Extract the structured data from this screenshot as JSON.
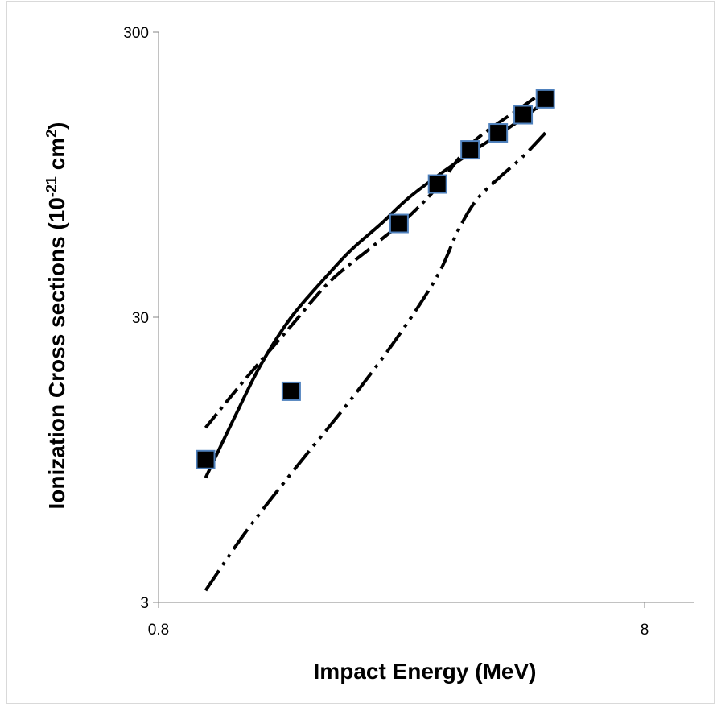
{
  "chart_data": {
    "type": "scatter",
    "xlabel": "Impact Energy (MeV)",
    "ylabel": {
      "prefix": "Ionization Cross sections (10",
      "exponent": "-21",
      "middle": " cm",
      "exponent2": "2",
      "suffix": ")"
    },
    "x_scale": "log",
    "y_scale": "log",
    "xlim": [
      0.8,
      11
    ],
    "ylim": [
      3,
      300
    ],
    "x_tick_labels": [
      "0.8",
      "8"
    ],
    "x_ticks": [
      0.8,
      8
    ],
    "y_tick_labels": [
      "3",
      "30",
      "300"
    ],
    "y_ticks": [
      3,
      30,
      300
    ],
    "grid": false,
    "legend": "none",
    "series": [
      {
        "marker": "square",
        "color": "#000000",
        "edge_color": "#4f81bd",
        "points": [
          {
            "x": 1.0,
            "y": 9.5
          },
          {
            "x": 1.5,
            "y": 16.5
          },
          {
            "x": 2.5,
            "y": 64
          },
          {
            "x": 3.0,
            "y": 88
          },
          {
            "x": 3.5,
            "y": 116
          },
          {
            "x": 4.0,
            "y": 133
          },
          {
            "x": 4.5,
            "y": 154
          },
          {
            "x": 5.0,
            "y": 175
          }
        ]
      },
      {
        "line_style": "solid",
        "color": "#000000",
        "points": [
          {
            "x": 1.0,
            "y": 8.2
          },
          {
            "x": 1.15,
            "y": 13.5
          },
          {
            "x": 1.3,
            "y": 20.5
          },
          {
            "x": 1.5,
            "y": 30
          },
          {
            "x": 1.8,
            "y": 43
          },
          {
            "x": 2.0,
            "y": 52
          },
          {
            "x": 2.3,
            "y": 64
          },
          {
            "x": 2.6,
            "y": 78
          },
          {
            "x": 3.0,
            "y": 94
          },
          {
            "x": 3.5,
            "y": 113
          },
          {
            "x": 4.0,
            "y": 131
          },
          {
            "x": 4.5,
            "y": 150
          },
          {
            "x": 5.0,
            "y": 172
          }
        ]
      },
      {
        "line_style": "dash-dot",
        "color": "#000000",
        "points": [
          {
            "x": 1.0,
            "y": 12.3
          },
          {
            "x": 1.2,
            "y": 18
          },
          {
            "x": 1.5,
            "y": 28
          },
          {
            "x": 1.8,
            "y": 40
          },
          {
            "x": 2.2,
            "y": 53
          },
          {
            "x": 2.6,
            "y": 67
          },
          {
            "x": 3.0,
            "y": 86
          },
          {
            "x": 3.3,
            "y": 107
          },
          {
            "x": 3.6,
            "y": 126
          },
          {
            "x": 4.0,
            "y": 144
          },
          {
            "x": 4.5,
            "y": 165
          },
          {
            "x": 5.0,
            "y": 188
          }
        ]
      },
      {
        "line_style": "dash-dot-dot",
        "color": "#000000",
        "points": [
          {
            "x": 1.0,
            "y": 3.3
          },
          {
            "x": 1.2,
            "y": 5.2
          },
          {
            "x": 1.5,
            "y": 8.5
          },
          {
            "x": 2.0,
            "y": 15.6
          },
          {
            "x": 2.5,
            "y": 26
          },
          {
            "x": 3.0,
            "y": 42
          },
          {
            "x": 3.3,
            "y": 60
          },
          {
            "x": 3.6,
            "y": 77
          },
          {
            "x": 4.0,
            "y": 92
          },
          {
            "x": 4.5,
            "y": 110
          },
          {
            "x": 5.0,
            "y": 133
          }
        ]
      }
    ]
  }
}
